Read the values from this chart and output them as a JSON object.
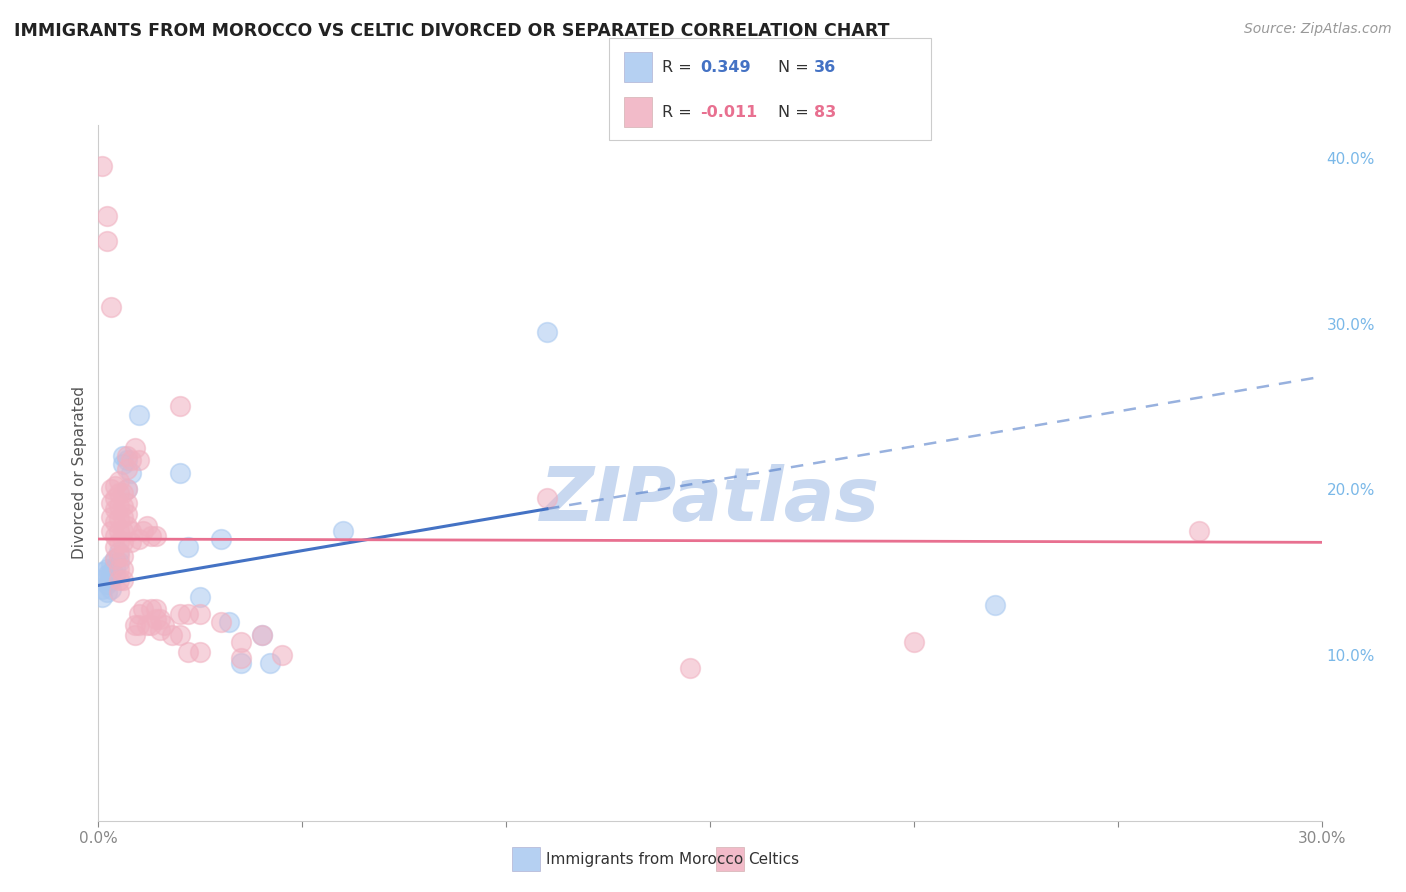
{
  "title": "IMMIGRANTS FROM MOROCCO VS CELTIC DIVORCED OR SEPARATED CORRELATION CHART",
  "source": "Source: ZipAtlas.com",
  "ylabel_left": "Divorced or Separated",
  "legend_blue_label": "Immigrants from Morocco",
  "legend_pink_label": "Celtics",
  "xlim": [
    0.0,
    0.3
  ],
  "ylim": [
    0.0,
    0.42
  ],
  "x_ticks": [
    0.0,
    0.05,
    0.1,
    0.15,
    0.2,
    0.25,
    0.3
  ],
  "y_ticks_right": [
    0.1,
    0.2,
    0.3,
    0.4
  ],
  "y_tick_labels_right": [
    "10.0%",
    "20.0%",
    "30.0%",
    "40.0%"
  ],
  "background_color": "#ffffff",
  "grid_color": "#d8d8d8",
  "blue_color": "#a8c8f0",
  "pink_color": "#f0b0c0",
  "blue_line_color": "#4472c4",
  "pink_line_color": "#e87090",
  "watermark_color": "#c8d8f0",
  "blue_points": [
    [
      0.001,
      0.15
    ],
    [
      0.001,
      0.145
    ],
    [
      0.001,
      0.14
    ],
    [
      0.001,
      0.135
    ],
    [
      0.002,
      0.152
    ],
    [
      0.002,
      0.148
    ],
    [
      0.002,
      0.143
    ],
    [
      0.002,
      0.138
    ],
    [
      0.003,
      0.155
    ],
    [
      0.003,
      0.15
    ],
    [
      0.003,
      0.145
    ],
    [
      0.003,
      0.14
    ],
    [
      0.004,
      0.158
    ],
    [
      0.004,
      0.153
    ],
    [
      0.004,
      0.148
    ],
    [
      0.005,
      0.162
    ],
    [
      0.005,
      0.156
    ],
    [
      0.006,
      0.22
    ],
    [
      0.006,
      0.215
    ],
    [
      0.007,
      0.218
    ],
    [
      0.007,
      0.2
    ],
    [
      0.008,
      0.21
    ],
    [
      0.01,
      0.245
    ],
    [
      0.02,
      0.21
    ],
    [
      0.022,
      0.165
    ],
    [
      0.025,
      0.135
    ],
    [
      0.03,
      0.17
    ],
    [
      0.032,
      0.12
    ],
    [
      0.035,
      0.095
    ],
    [
      0.04,
      0.112
    ],
    [
      0.042,
      0.095
    ],
    [
      0.06,
      0.175
    ],
    [
      0.11,
      0.295
    ],
    [
      0.22,
      0.13
    ]
  ],
  "pink_points": [
    [
      0.001,
      0.395
    ],
    [
      0.002,
      0.365
    ],
    [
      0.002,
      0.35
    ],
    [
      0.003,
      0.31
    ],
    [
      0.003,
      0.2
    ],
    [
      0.003,
      0.192
    ],
    [
      0.003,
      0.183
    ],
    [
      0.003,
      0.175
    ],
    [
      0.004,
      0.202
    ],
    [
      0.004,
      0.195
    ],
    [
      0.004,
      0.188
    ],
    [
      0.004,
      0.18
    ],
    [
      0.004,
      0.172
    ],
    [
      0.004,
      0.165
    ],
    [
      0.004,
      0.158
    ],
    [
      0.005,
      0.205
    ],
    [
      0.005,
      0.198
    ],
    [
      0.005,
      0.19
    ],
    [
      0.005,
      0.182
    ],
    [
      0.005,
      0.175
    ],
    [
      0.005,
      0.168
    ],
    [
      0.005,
      0.16
    ],
    [
      0.005,
      0.152
    ],
    [
      0.005,
      0.145
    ],
    [
      0.005,
      0.138
    ],
    [
      0.006,
      0.198
    ],
    [
      0.006,
      0.19
    ],
    [
      0.006,
      0.183
    ],
    [
      0.006,
      0.175
    ],
    [
      0.006,
      0.168
    ],
    [
      0.006,
      0.16
    ],
    [
      0.006,
      0.152
    ],
    [
      0.006,
      0.145
    ],
    [
      0.007,
      0.22
    ],
    [
      0.007,
      0.212
    ],
    [
      0.007,
      0.2
    ],
    [
      0.007,
      0.192
    ],
    [
      0.007,
      0.185
    ],
    [
      0.007,
      0.178
    ],
    [
      0.008,
      0.218
    ],
    [
      0.008,
      0.175
    ],
    [
      0.008,
      0.168
    ],
    [
      0.009,
      0.225
    ],
    [
      0.009,
      0.118
    ],
    [
      0.009,
      0.112
    ],
    [
      0.01,
      0.218
    ],
    [
      0.01,
      0.17
    ],
    [
      0.01,
      0.125
    ],
    [
      0.01,
      0.118
    ],
    [
      0.011,
      0.175
    ],
    [
      0.011,
      0.128
    ],
    [
      0.012,
      0.178
    ],
    [
      0.012,
      0.118
    ],
    [
      0.013,
      0.172
    ],
    [
      0.013,
      0.128
    ],
    [
      0.013,
      0.118
    ],
    [
      0.014,
      0.172
    ],
    [
      0.014,
      0.128
    ],
    [
      0.014,
      0.122
    ],
    [
      0.015,
      0.122
    ],
    [
      0.015,
      0.115
    ],
    [
      0.016,
      0.118
    ],
    [
      0.018,
      0.112
    ],
    [
      0.02,
      0.25
    ],
    [
      0.02,
      0.125
    ],
    [
      0.02,
      0.112
    ],
    [
      0.022,
      0.125
    ],
    [
      0.022,
      0.102
    ],
    [
      0.025,
      0.125
    ],
    [
      0.025,
      0.102
    ],
    [
      0.03,
      0.12
    ],
    [
      0.035,
      0.108
    ],
    [
      0.035,
      0.098
    ],
    [
      0.04,
      0.112
    ],
    [
      0.045,
      0.1
    ],
    [
      0.11,
      0.195
    ],
    [
      0.145,
      0.092
    ],
    [
      0.2,
      0.108
    ],
    [
      0.27,
      0.175
    ]
  ],
  "blue_line_y_start": 0.142,
  "blue_line_y_end": 0.268,
  "blue_line_solid_end_x": 0.11,
  "pink_line_y_start": 0.17,
  "pink_line_y_end": 0.168
}
